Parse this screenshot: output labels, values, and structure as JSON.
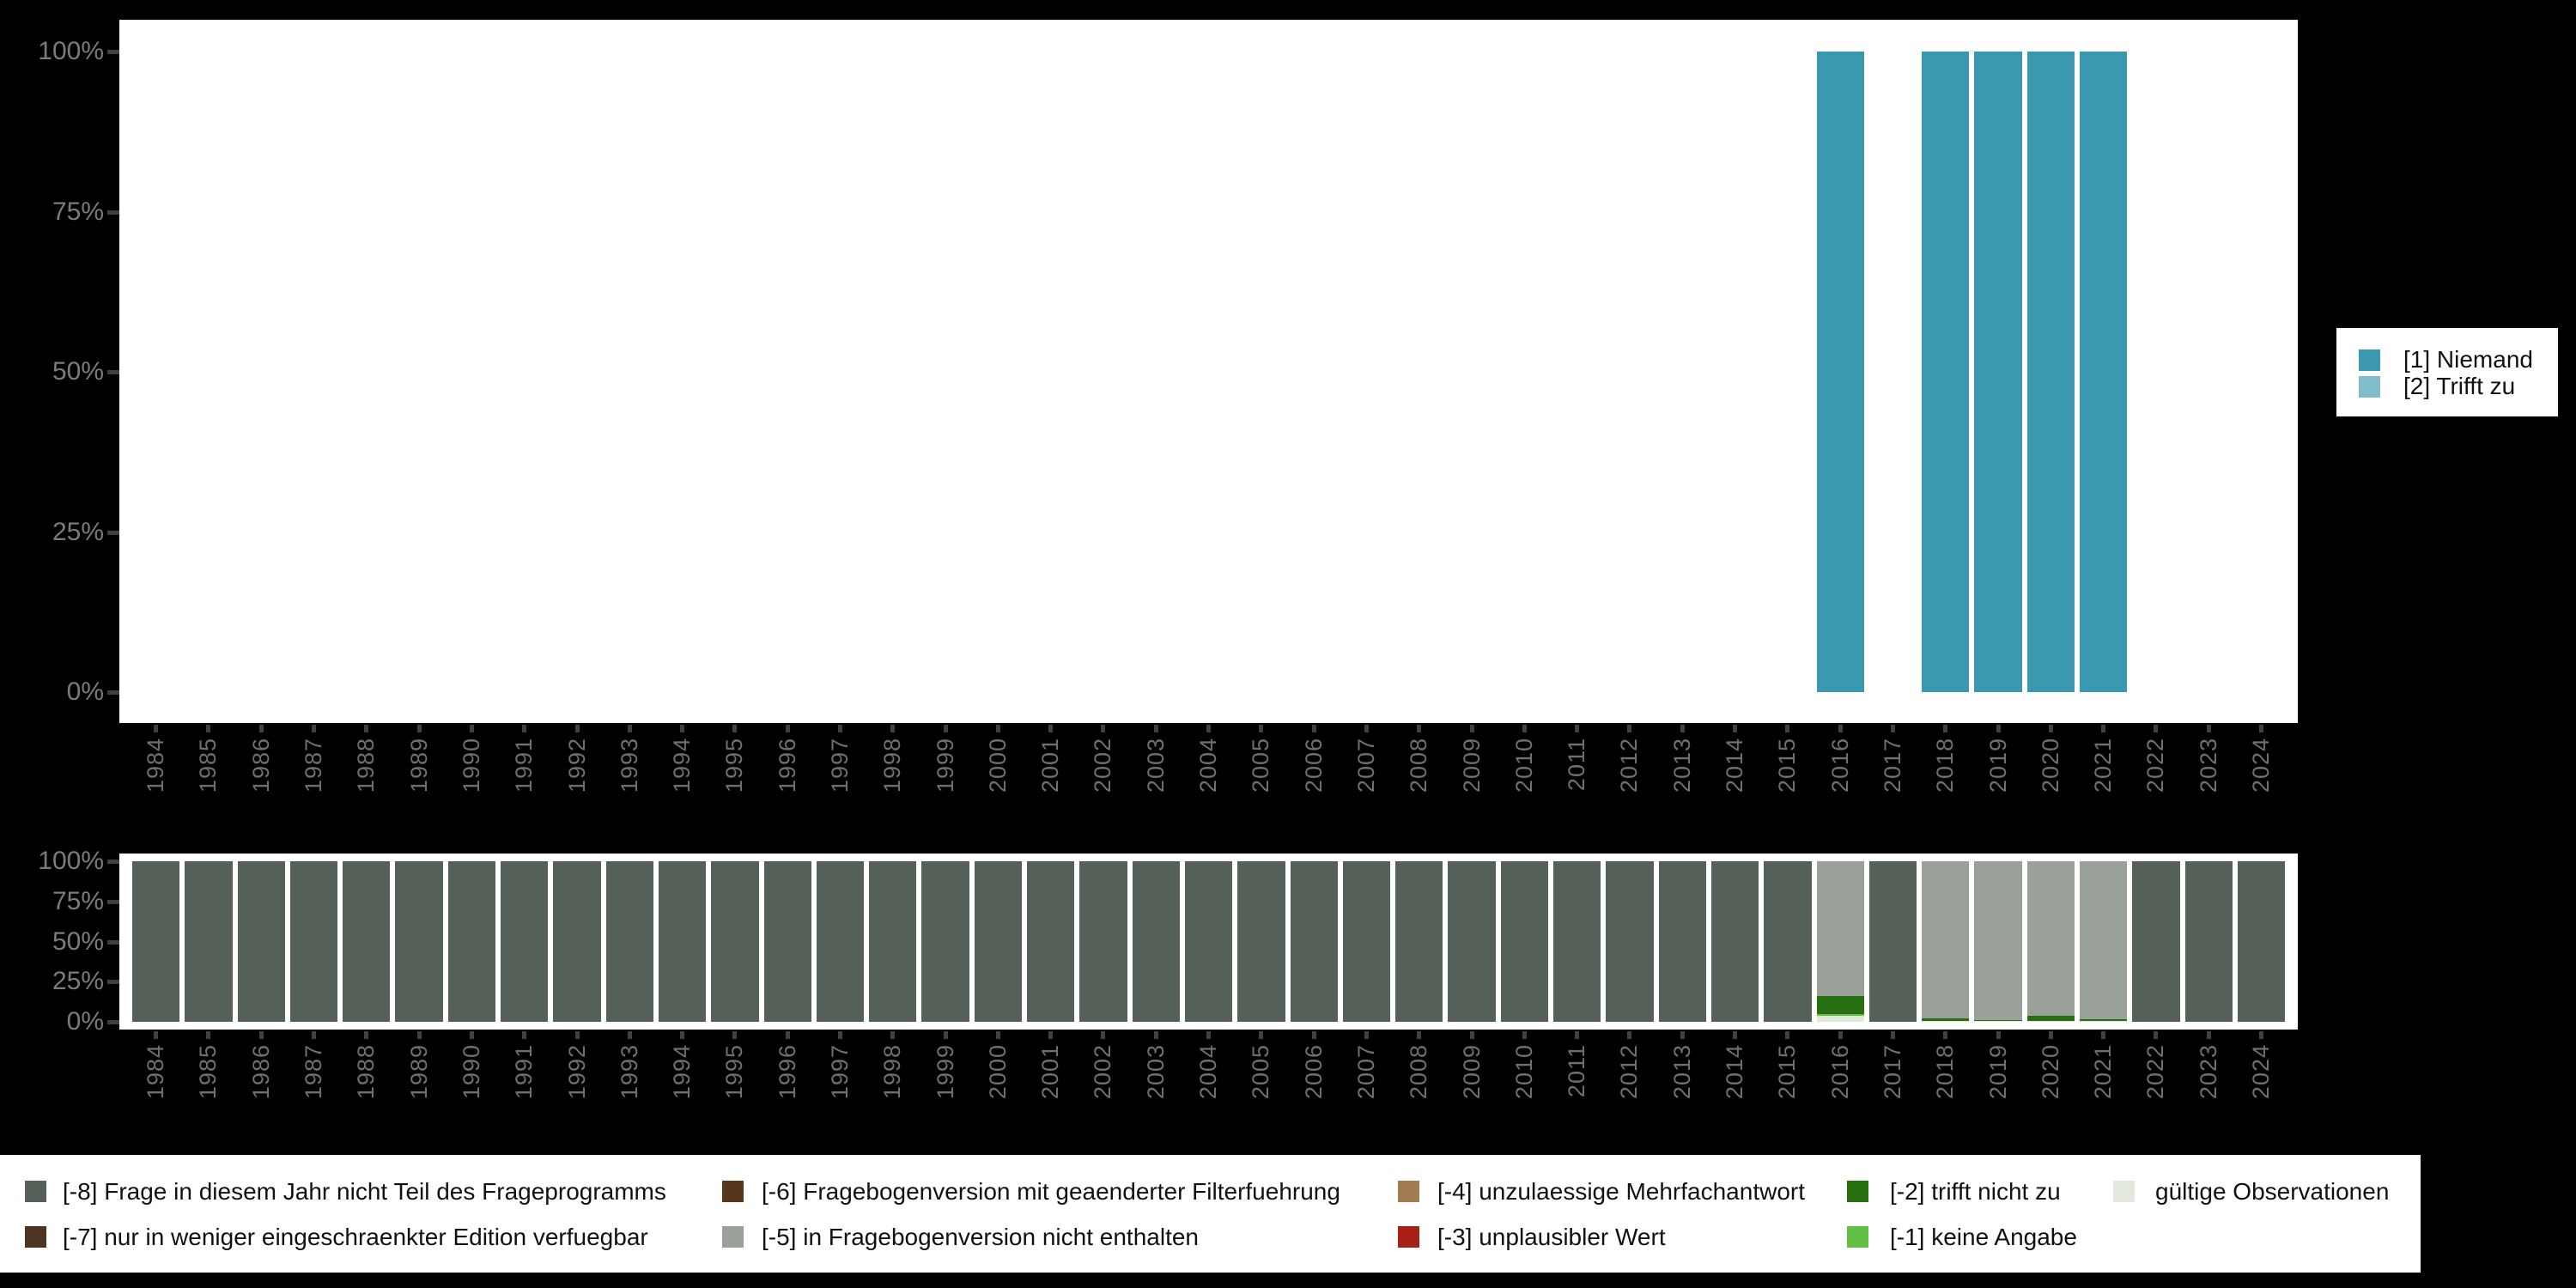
{
  "colors": {
    "background": "#000000",
    "panel": "#ffffff",
    "axis_percent_text": "#7b7b7b",
    "axis_year_text": "#6f6f6f",
    "axis_tick": "#404040",
    "legend_text": "#111111"
  },
  "chart_data": [
    {
      "type": "bar",
      "stacked": true,
      "title": "",
      "xlabel": "",
      "ylabel": "",
      "ylim": [
        0,
        100
      ],
      "grid": false,
      "legend_position": "right",
      "yticks": [
        "100%",
        "75%",
        "50%",
        "25%",
        "0%"
      ],
      "categories": [
        "1984",
        "1985",
        "1986",
        "1987",
        "1988",
        "1989",
        "1990",
        "1991",
        "1992",
        "1993",
        "1994",
        "1995",
        "1996",
        "1997",
        "1998",
        "1999",
        "2000",
        "2001",
        "2002",
        "2003",
        "2004",
        "2005",
        "2006",
        "2007",
        "2008",
        "2009",
        "2010",
        "2011",
        "2012",
        "2013",
        "2014",
        "2015",
        "2016",
        "2017",
        "2018",
        "2019",
        "2020",
        "2021",
        "2022",
        "2023",
        "2024"
      ],
      "series": [
        {
          "key": "v1",
          "name": "[1] Niemand",
          "color": "#3a98b0",
          "values": [
            0,
            0,
            0,
            0,
            0,
            0,
            0,
            0,
            0,
            0,
            0,
            0,
            0,
            0,
            0,
            0,
            0,
            0,
            0,
            0,
            0,
            0,
            0,
            0,
            0,
            0,
            0,
            0,
            0,
            0,
            0,
            0,
            100,
            0,
            100,
            100,
            100,
            100,
            0,
            0,
            0
          ]
        },
        {
          "key": "v2",
          "name": "[2] Trifft zu",
          "color": "#7fbdca",
          "values": [
            0,
            0,
            0,
            0,
            0,
            0,
            0,
            0,
            0,
            0,
            0,
            0,
            0,
            0,
            0,
            0,
            0,
            0,
            0,
            0,
            0,
            0,
            0,
            0,
            0,
            0,
            0,
            0,
            0,
            0,
            0,
            0,
            0,
            0,
            0,
            0,
            0,
            0,
            0,
            0,
            0
          ]
        }
      ]
    },
    {
      "type": "bar",
      "stacked": true,
      "title": "",
      "xlabel": "",
      "ylabel": "",
      "ylim": [
        0,
        100
      ],
      "grid": false,
      "legend_position": "bottom",
      "yticks": [
        "100%",
        "75%",
        "50%",
        "25%",
        "0%"
      ],
      "categories": [
        "1984",
        "1985",
        "1986",
        "1987",
        "1988",
        "1989",
        "1990",
        "1991",
        "1992",
        "1993",
        "1994",
        "1995",
        "1996",
        "1997",
        "1998",
        "1999",
        "2000",
        "2001",
        "2002",
        "2003",
        "2004",
        "2005",
        "2006",
        "2007",
        "2008",
        "2009",
        "2010",
        "2011",
        "2012",
        "2013",
        "2014",
        "2015",
        "2016",
        "2017",
        "2018",
        "2019",
        "2020",
        "2021",
        "2022",
        "2023",
        "2024"
      ],
      "series": [
        {
          "key": "valid",
          "name": "gültige Observationen",
          "color": "#e3e8df",
          "values": [
            0,
            0,
            0,
            0,
            0,
            0,
            0,
            0,
            0,
            0,
            0,
            0,
            0,
            0,
            0,
            0,
            0,
            0,
            0,
            0,
            0,
            0,
            0,
            0,
            0,
            0,
            0,
            0,
            0,
            0,
            0,
            0,
            4,
            0,
            0.8,
            0.5,
            0.7,
            0.5,
            0,
            0,
            0
          ]
        },
        {
          "key": "m1",
          "name": "[-1] keine Angabe",
          "color": "#63c046",
          "values": [
            0,
            0,
            0,
            0,
            0,
            0,
            0,
            0,
            0,
            0,
            0,
            0,
            0,
            0,
            0,
            0,
            0,
            0,
            0,
            0,
            0,
            0,
            0,
            0,
            0,
            0,
            0,
            0,
            0,
            0,
            0,
            0,
            0.8,
            0,
            0,
            0,
            0,
            0,
            0,
            0,
            0
          ]
        },
        {
          "key": "m2",
          "name": "[-2] trifft nicht zu",
          "color": "#26700f",
          "values": [
            0,
            0,
            0,
            0,
            0,
            0,
            0,
            0,
            0,
            0,
            0,
            0,
            0,
            0,
            0,
            0,
            0,
            0,
            0,
            0,
            0,
            0,
            0,
            0,
            0,
            0,
            0,
            0,
            0,
            0,
            0,
            0,
            11.2,
            0,
            1.5,
            0.8,
            3,
            1.2,
            0,
            0,
            0
          ]
        },
        {
          "key": "m3",
          "name": "[-3] unplausibler Wert",
          "color": "#a82015",
          "values": [
            0,
            0,
            0,
            0,
            0,
            0,
            0,
            0,
            0,
            0,
            0,
            0,
            0,
            0,
            0,
            0,
            0,
            0,
            0,
            0,
            0,
            0,
            0,
            0,
            0,
            0,
            0,
            0,
            0,
            0,
            0,
            0,
            0,
            0,
            0,
            0,
            0,
            0,
            0,
            0,
            0
          ]
        },
        {
          "key": "m4",
          "name": "[-4] unzulaessige Mehrfachantwort",
          "color": "#a17b52",
          "values": [
            0,
            0,
            0,
            0,
            0,
            0,
            0,
            0,
            0,
            0,
            0,
            0,
            0,
            0,
            0,
            0,
            0,
            0,
            0,
            0,
            0,
            0,
            0,
            0,
            0,
            0,
            0,
            0,
            0,
            0,
            0,
            0,
            0,
            0,
            0,
            0,
            0,
            0,
            0,
            0,
            0
          ]
        },
        {
          "key": "m5",
          "name": "[-5] in Fragebogenversion nicht enthalten",
          "color": "#9aa199",
          "values": [
            0,
            0,
            0,
            0,
            0,
            0,
            0,
            0,
            0,
            0,
            0,
            0,
            0,
            0,
            0,
            0,
            0,
            0,
            0,
            0,
            0,
            0,
            0,
            0,
            0,
            0,
            0,
            0,
            0,
            0,
            0,
            0,
            84,
            0,
            97.7,
            98.7,
            96.3,
            98.3,
            0,
            0,
            0
          ]
        },
        {
          "key": "m6",
          "name": "[-6] Fragebogenversion mit geaenderter Filterfuehrung",
          "color": "#57361c",
          "values": [
            0,
            0,
            0,
            0,
            0,
            0,
            0,
            0,
            0,
            0,
            0,
            0,
            0,
            0,
            0,
            0,
            0,
            0,
            0,
            0,
            0,
            0,
            0,
            0,
            0,
            0,
            0,
            0,
            0,
            0,
            0,
            0,
            0,
            0,
            0,
            0,
            0,
            0,
            0,
            0,
            0
          ]
        },
        {
          "key": "m7",
          "name": "[-7] nur in weniger eingeschraenkter Edition verfuegbar",
          "color": "#4e3422",
          "values": [
            0,
            0,
            0,
            0,
            0,
            0,
            0,
            0,
            0,
            0,
            0,
            0,
            0,
            0,
            0,
            0,
            0,
            0,
            0,
            0,
            0,
            0,
            0,
            0,
            0,
            0,
            0,
            0,
            0,
            0,
            0,
            0,
            0,
            0,
            0,
            0,
            0,
            0,
            0,
            0,
            0
          ]
        },
        {
          "key": "m8",
          "name": "[-8] Frage in diesem Jahr nicht Teil des Frageprogramms",
          "color": "#556058",
          "values": [
            100,
            100,
            100,
            100,
            100,
            100,
            100,
            100,
            100,
            100,
            100,
            100,
            100,
            100,
            100,
            100,
            100,
            100,
            100,
            100,
            100,
            100,
            100,
            100,
            100,
            100,
            100,
            100,
            100,
            100,
            100,
            100,
            0,
            100,
            0,
            0,
            0,
            0,
            100,
            100,
            100
          ]
        }
      ],
      "legend_grid": [
        [
          "m8",
          "m6",
          "m4",
          "m2",
          "valid"
        ],
        [
          "m7",
          "m5",
          "m3",
          "m1"
        ]
      ]
    }
  ]
}
